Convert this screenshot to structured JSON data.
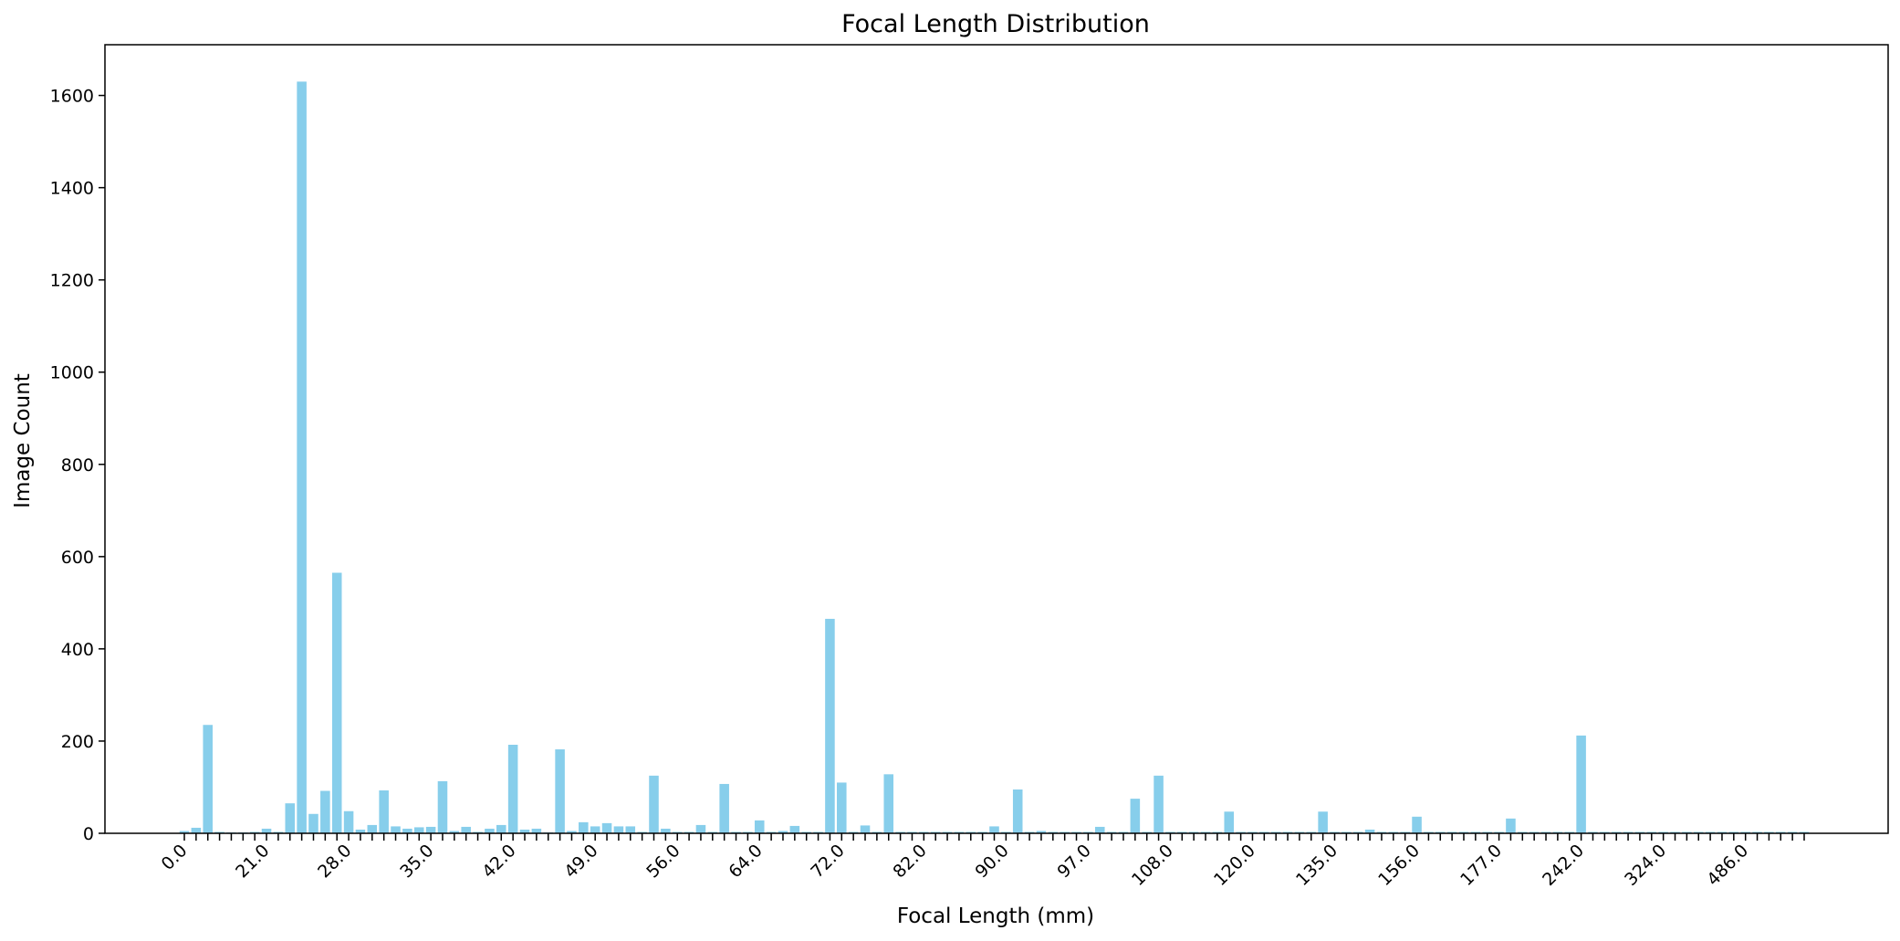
{
  "chart_data": {
    "type": "bar",
    "title": "Focal Length Distribution",
    "xlabel": "Focal Length (mm)",
    "ylabel": "Image Count",
    "ylim": [
      0,
      1710
    ],
    "yticks": [
      0,
      200,
      400,
      600,
      800,
      1000,
      1200,
      1400,
      1600
    ],
    "grid": false,
    "legend": "none",
    "bar_color": "#87CEEB",
    "xtick_labels": [
      "0.0",
      "21.0",
      "28.0",
      "35.0",
      "42.0",
      "49.0",
      "56.0",
      "64.0",
      "72.0",
      "82.0",
      "90.0",
      "97.0",
      "108.0",
      "120.0",
      "135.0",
      "156.0",
      "177.0",
      "242.0",
      "324.0",
      "486.0"
    ],
    "xtick_every": 7,
    "values": [
      5,
      12,
      235,
      3,
      2,
      2,
      3,
      10,
      3,
      65,
      1630,
      42,
      92,
      565,
      48,
      8,
      18,
      93,
      15,
      10,
      13,
      14,
      113,
      5,
      14,
      3,
      10,
      18,
      192,
      8,
      10,
      2,
      182,
      5,
      24,
      15,
      22,
      15,
      15,
      3,
      125,
      10,
      3,
      3,
      18,
      3,
      107,
      3,
      3,
      28,
      3,
      5,
      16,
      3,
      3,
      465,
      110,
      3,
      17,
      3,
      128,
      3,
      3,
      3,
      3,
      3,
      3,
      3,
      3,
      15,
      3,
      95,
      3,
      5,
      3,
      3,
      3,
      3,
      14,
      3,
      3,
      75,
      3,
      125,
      3,
      3,
      3,
      3,
      3,
      47,
      3,
      3,
      3,
      3,
      3,
      3,
      3,
      47,
      3,
      3,
      3,
      8,
      3,
      3,
      3,
      36,
      3,
      3,
      3,
      3,
      3,
      3,
      3,
      32,
      3,
      3,
      3,
      3,
      3,
      212,
      3,
      3,
      3,
      3,
      3,
      3,
      3,
      3,
      3,
      3,
      3,
      3,
      3,
      3,
      3,
      3,
      3,
      3,
      3
    ]
  }
}
